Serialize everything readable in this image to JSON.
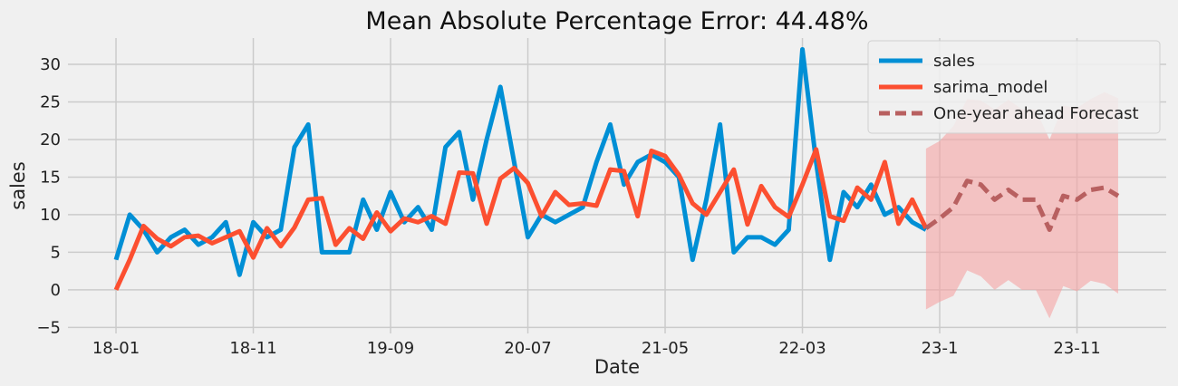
{
  "chart_data": {
    "type": "line",
    "title": "Mean Absolute Percentage Error: 44.48%",
    "xlabel": "Date",
    "ylabel": "sales",
    "xlim": [
      -3.5,
      76.5
    ],
    "ylim": [
      -5.8,
      33.5
    ],
    "x_ticks": [
      {
        "pos": 0,
        "label": "18-01"
      },
      {
        "pos": 10,
        "label": "18-11"
      },
      {
        "pos": 20,
        "label": "19-09"
      },
      {
        "pos": 30,
        "label": "20-07"
      },
      {
        "pos": 40,
        "label": "21-05"
      },
      {
        "pos": 50,
        "label": "22-03"
      },
      {
        "pos": 60,
        "label": "23-1"
      },
      {
        "pos": 70,
        "label": "23-11"
      }
    ],
    "y_ticks": [
      -5,
      0,
      5,
      10,
      15,
      20,
      25,
      30
    ],
    "grid": true,
    "legend": {
      "position": "top-right",
      "entries": [
        "sales",
        "sarima_model",
        "One-year ahead Forecast"
      ]
    },
    "colors": {
      "sales": "#008fd5",
      "sarima_model": "#fc4f30",
      "forecast": "#b86060",
      "confidence_band": "#f5a3a3"
    },
    "series": [
      {
        "name": "sales",
        "x_start": 0,
        "values": [
          4,
          10,
          8,
          5,
          7,
          8,
          6,
          7,
          9,
          2,
          9,
          7,
          8,
          19,
          22,
          5,
          5,
          5,
          12,
          8,
          13,
          9,
          11,
          8,
          19,
          21,
          12,
          20,
          27,
          17,
          7,
          10,
          9,
          10,
          11,
          17,
          22,
          14,
          17,
          18,
          17,
          15,
          4,
          12,
          22,
          5,
          7,
          7,
          6,
          8,
          32,
          17,
          4,
          13,
          11,
          14,
          10,
          11,
          9,
          8
        ]
      },
      {
        "name": "sarima_model",
        "x_start": 0,
        "values": [
          0,
          4,
          8.5,
          6.8,
          5.8,
          7,
          7.2,
          6.2,
          7,
          7.8,
          4.3,
          8.2,
          5.8,
          8.3,
          12,
          12.2,
          6,
          8.2,
          6.8,
          10.3,
          7.8,
          9.5,
          9,
          9.8,
          8.8,
          15.6,
          15.5,
          8.8,
          14.8,
          16.2,
          14.2,
          9.8,
          13,
          11.3,
          11.5,
          11.2,
          16,
          15.8,
          9.8,
          18.5,
          17.8,
          15.3,
          11.5,
          10,
          13,
          16,
          8.7,
          13.8,
          11,
          9.7,
          14,
          18.7,
          9.8,
          9.2,
          13.6,
          12,
          17,
          8.8,
          12,
          8.2
        ]
      },
      {
        "name": "One-year ahead Forecast",
        "x_start": 59,
        "values": [
          8.2,
          9.5,
          11,
          14.5,
          14,
          12,
          13.3,
          12,
          12,
          8,
          12.5,
          12,
          13.3,
          13.6,
          12.5
        ],
        "lower": [
          -2.6,
          -1.6,
          -0.8,
          2.6,
          1.8,
          0,
          1.3,
          0,
          0,
          -3.8,
          0.5,
          -0.2,
          1.2,
          0.8,
          -0.5
        ],
        "upper": [
          18.8,
          19.8,
          21.8,
          25.4,
          25.2,
          24,
          25.3,
          24,
          24,
          20,
          24.5,
          24.2,
          25.4,
          26.3,
          25.5
        ]
      }
    ]
  }
}
